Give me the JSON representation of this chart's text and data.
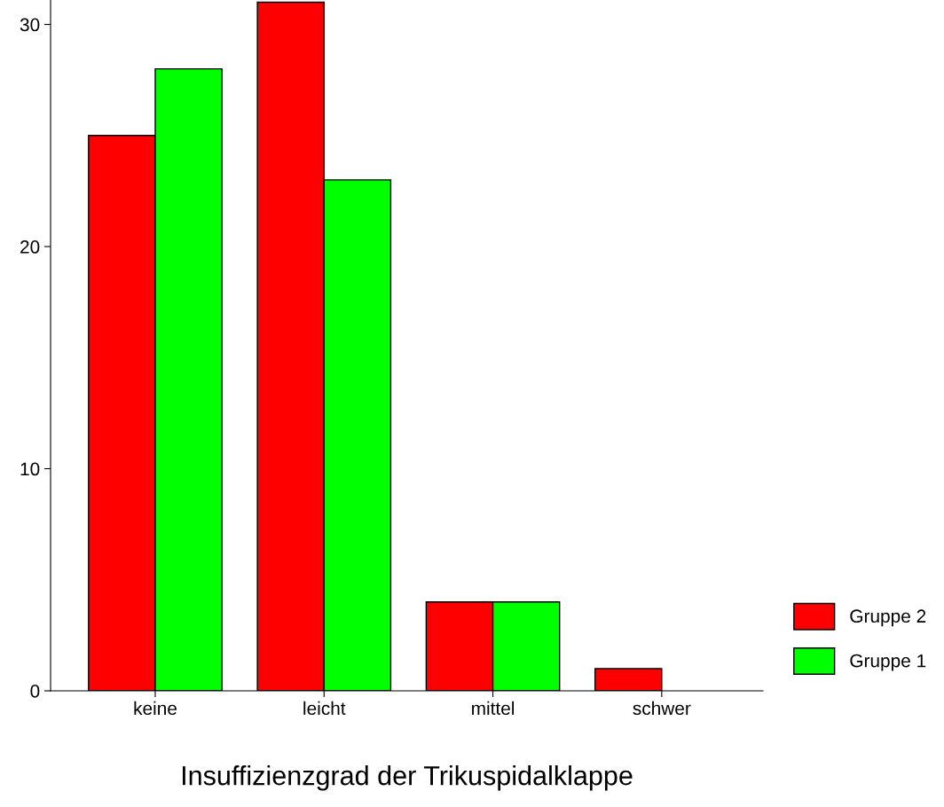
{
  "chart_data": {
    "type": "bar",
    "xlabel": "Insuffizienzgrad der Trikuspidalklappe",
    "categories": [
      "keine",
      "leicht",
      "mittel",
      "schwer"
    ],
    "series": [
      {
        "name": "Gruppe 2",
        "color": "#ff0000",
        "values": [
          25,
          31,
          4,
          1
        ]
      },
      {
        "name": "Gruppe 1",
        "color": "#00ff00",
        "values": [
          28,
          23,
          4,
          0
        ]
      }
    ],
    "ylim": [
      0,
      31.1
    ],
    "yticks": [
      0,
      10,
      20,
      30
    ],
    "grid": false,
    "legend": "right"
  }
}
